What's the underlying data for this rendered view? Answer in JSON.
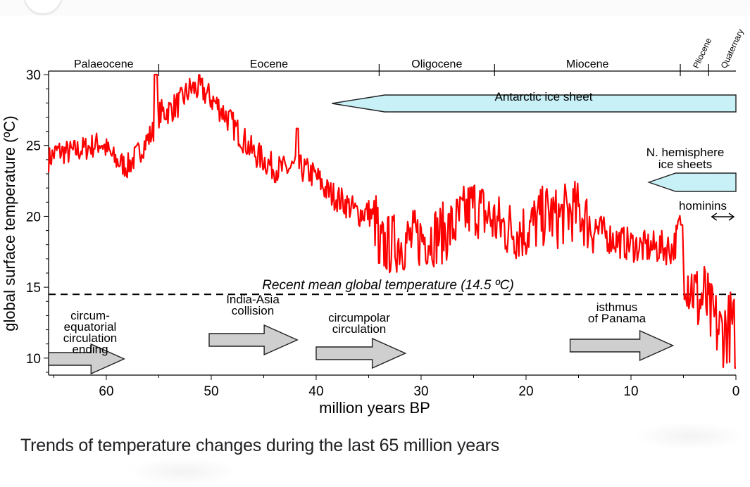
{
  "caption": "Trends of temperature changes during the last 65 million years",
  "chart_data": {
    "type": "line",
    "xlabel": "million years BP",
    "ylabel": "global surface temperature (ºC)",
    "xlim": [
      65.5,
      0
    ],
    "ylim": [
      8.8,
      30.2
    ],
    "xticks": [
      60,
      50,
      40,
      30,
      20,
      10,
      0
    ],
    "yticks": [
      10,
      15,
      20,
      25,
      30
    ],
    "y_minor_step": 1,
    "grid": false,
    "line_color": "#ff0000",
    "series": [
      {
        "values_x": [
          65.5,
          64.7,
          63.5,
          62.0,
          60.5,
          59.2,
          58.0,
          57.0,
          56.0,
          55.5,
          55.0,
          54.0,
          53.0,
          52.0,
          51.0,
          50.0,
          49.0,
          48.0,
          47.0,
          46.0,
          45.0,
          44.0,
          43.0,
          42.0,
          41.2,
          40.0,
          39.0,
          38.0,
          37.0,
          36.0,
          35.0,
          34.2,
          33.8,
          33.0,
          32.0,
          31.0,
          30.0,
          29.0,
          28.0,
          27.0,
          26.0,
          25.0,
          24.0,
          23.0,
          22.0,
          21.0,
          20.0,
          19.0,
          18.0,
          17.0,
          16.0,
          15.0,
          14.0,
          13.0,
          12.0,
          11.0,
          10.0,
          9.0,
          8.0,
          7.0,
          6.0,
          5.3,
          5.0,
          4.5,
          4.0,
          3.5,
          3.0,
          2.5,
          2.0,
          1.5,
          1.0,
          0.5,
          0.0
        ],
        "values_y": [
          24.0,
          24.6,
          24.5,
          24.8,
          25.2,
          24.0,
          23.5,
          24.4,
          25.5,
          26.0,
          27.2,
          27.5,
          28.0,
          29.0,
          29.0,
          28.3,
          27.5,
          26.5,
          25.5,
          24.5,
          24.0,
          23.4,
          23.3,
          23.5,
          23.3,
          22.8,
          21.8,
          21.3,
          20.8,
          20.2,
          20.3,
          19.5,
          17.8,
          18.0,
          18.2,
          18.3,
          18.5,
          18.6,
          18.8,
          19.2,
          20.0,
          20.8,
          20.2,
          19.6,
          19.2,
          19.0,
          19.0,
          19.6,
          20.2,
          19.8,
          20.3,
          20.4,
          19.5,
          19.0,
          18.5,
          18.2,
          18.0,
          17.8,
          17.8,
          17.8,
          17.7,
          19.2,
          17.0,
          15.5,
          14.8,
          13.8,
          14.5,
          13.0,
          12.5,
          11.8,
          12.0,
          12.3,
          11.8
        ]
      }
    ],
    "reference_line": {
      "y": 14.5,
      "label": "Recent mean global temperature (14.5 ºC)"
    },
    "epochs": [
      {
        "label": "Palaeocene",
        "start": 65.5,
        "end": 55.0
      },
      {
        "label": "Eocene",
        "start": 55.0,
        "end": 34.0
      },
      {
        "label": "Oligocene",
        "start": 34.0,
        "end": 23.0
      },
      {
        "label": "Miocene",
        "start": 23.0,
        "end": 5.3
      },
      {
        "label": "Pliocene",
        "start": 5.3,
        "end": 2.6
      },
      {
        "label": "Quaternary",
        "start": 2.6,
        "end": 0.0
      }
    ],
    "ice_sheets": [
      {
        "label": "Antarctic ice sheet",
        "start": 38.5,
        "end": 0.0,
        "color": "#c7f0f7"
      },
      {
        "label": "N. hemisphere ice sheets",
        "start": 8.3,
        "end": 0.0,
        "color": "#c7f0f7"
      }
    ],
    "hominins": {
      "label": "hominins",
      "start": 2.5,
      "end": 0.0
    },
    "events": [
      {
        "label": "circum-\nequatorial\ncirculation\nending",
        "arrow_start": 65.5,
        "arrow_end": 58.3
      },
      {
        "label": "India-Asia\ncollision",
        "arrow_start": 50.2,
        "arrow_end": 41.8
      },
      {
        "label": "circumpolar\ncirculation",
        "arrow_start": 40.0,
        "arrow_end": 31.5
      },
      {
        "label": "isthmus\nof Panama",
        "arrow_start": 15.8,
        "arrow_end": 6.0
      }
    ]
  }
}
